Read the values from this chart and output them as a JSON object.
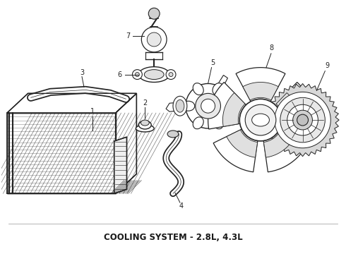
{
  "title": "COOLING SYSTEM - 2.8L, 4.3L",
  "title_fontsize": 8.5,
  "title_fontweight": "bold",
  "bg_color": "#ffffff",
  "line_color": "#222222",
  "fig_width": 4.9,
  "fig_height": 3.6,
  "dpi": 100
}
